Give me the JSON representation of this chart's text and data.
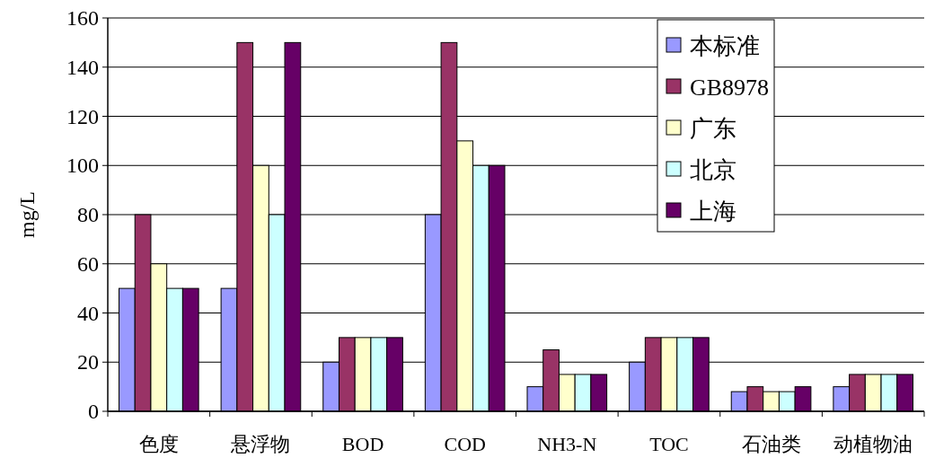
{
  "chart_data": {
    "type": "bar",
    "ylabel": "mg/L",
    "categories": [
      "色度",
      "悬浮物",
      "BOD",
      "COD",
      "NH3-N",
      "TOC",
      "石油类",
      "动植物油"
    ],
    "series": [
      {
        "name": "本标准",
        "color": "#9999ff",
        "values": [
          50,
          50,
          20,
          80,
          10,
          20,
          8,
          10
        ]
      },
      {
        "name": "GB8978",
        "color": "#993366",
        "values": [
          80,
          150,
          30,
          150,
          25,
          30,
          10,
          15
        ]
      },
      {
        "name": "广东",
        "color": "#ffffcc",
        "values": [
          60,
          100,
          30,
          110,
          15,
          30,
          8,
          15
        ]
      },
      {
        "name": "北京",
        "color": "#ccffff",
        "values": [
          50,
          80,
          30,
          100,
          15,
          30,
          8,
          15
        ]
      },
      {
        "name": "上海",
        "color": "#660066",
        "values": [
          50,
          150,
          30,
          100,
          15,
          30,
          10,
          15
        ]
      }
    ],
    "ylim": [
      0,
      160
    ],
    "yticks": [
      0,
      20,
      40,
      60,
      80,
      100,
      120,
      140,
      160
    ],
    "grid": "y",
    "legend": "top right"
  }
}
